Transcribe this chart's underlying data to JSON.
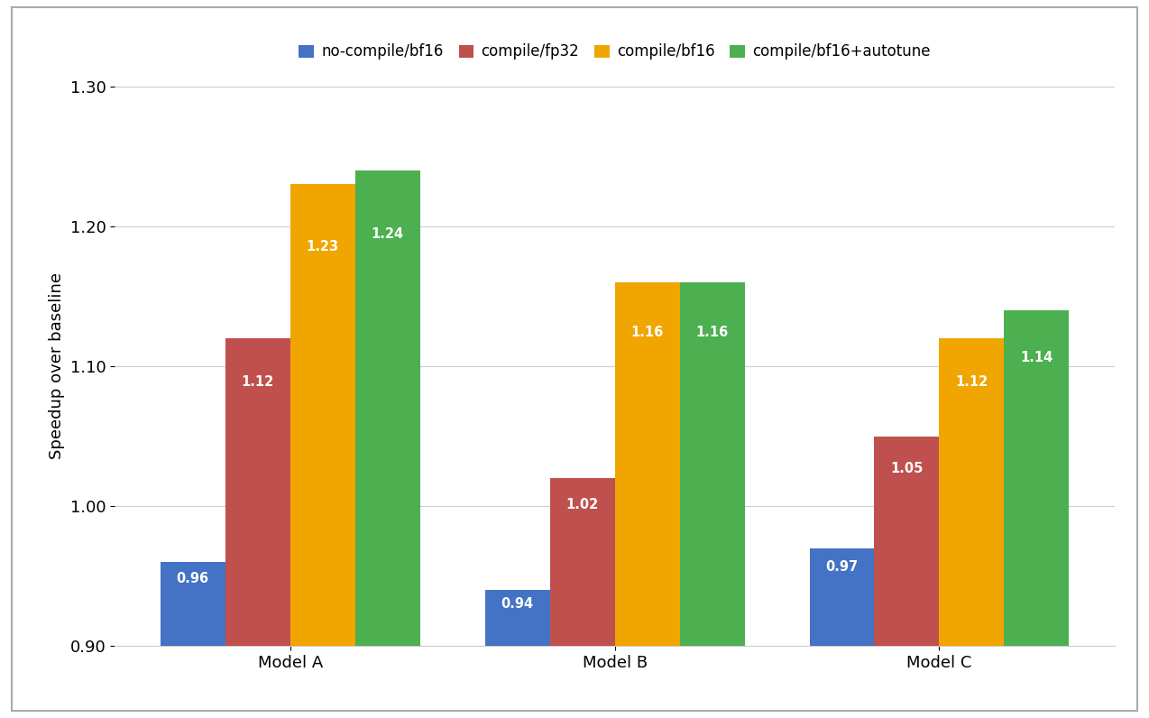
{
  "categories": [
    "Model A",
    "Model B",
    "Model C"
  ],
  "series": [
    {
      "label": "no-compile/bf16",
      "color": "#4472C4",
      "values": [
        0.96,
        0.94,
        0.97
      ]
    },
    {
      "label": "compile/fp32",
      "color": "#C0504D",
      "values": [
        1.12,
        1.02,
        1.05
      ]
    },
    {
      "label": "compile/bf16",
      "color": "#F0A500",
      "values": [
        1.23,
        1.16,
        1.12
      ]
    },
    {
      "label": "compile/bf16+autotune",
      "color": "#4CAF50",
      "values": [
        1.24,
        1.16,
        1.14
      ]
    }
  ],
  "ylim": [
    0.9,
    1.3
  ],
  "yticks": [
    0.9,
    1.0,
    1.1,
    1.2,
    1.3
  ],
  "ylabel": "Speedup over baseline",
  "bar_width": 0.2,
  "background_color": "#ffffff",
  "grid_color": "#cccccc",
  "label_fontsize": 13,
  "tick_fontsize": 13,
  "legend_fontsize": 12,
  "value_fontsize": 10.5,
  "value_color": "white",
  "outer_border_color": "#aaaaaa"
}
